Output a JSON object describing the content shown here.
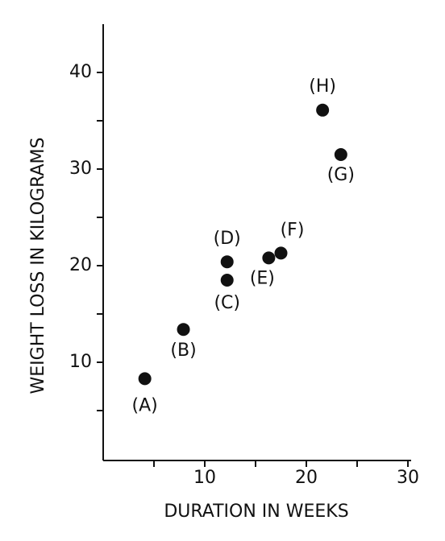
{
  "chart_data": {
    "type": "scatter",
    "x_label": "DURATION IN WEEKS",
    "y_label": "WEIGHT LOSS IN KILOGRAMS",
    "point_labels": [
      "(A)",
      "(B)",
      "(C)",
      "(D)",
      "(E)",
      "(F)",
      "(G)",
      "(H)"
    ],
    "x": [
      4.1,
      7.9,
      12.2,
      12.2,
      16.3,
      17.5,
      23.4,
      21.6
    ],
    "values": [
      8.3,
      13.4,
      18.5,
      20.4,
      20.8,
      21.3,
      31.5,
      36.1
    ],
    "color": "#111111",
    "xlim": [
      0,
      30
    ],
    "xticks": [
      10,
      20,
      30
    ],
    "xminor_ticks": [
      5,
      15,
      25
    ],
    "ylim": [
      0,
      45
    ],
    "yticks": [
      10,
      20,
      30,
      40
    ],
    "yminor_ticks": [
      5,
      15,
      25,
      35
    ]
  }
}
